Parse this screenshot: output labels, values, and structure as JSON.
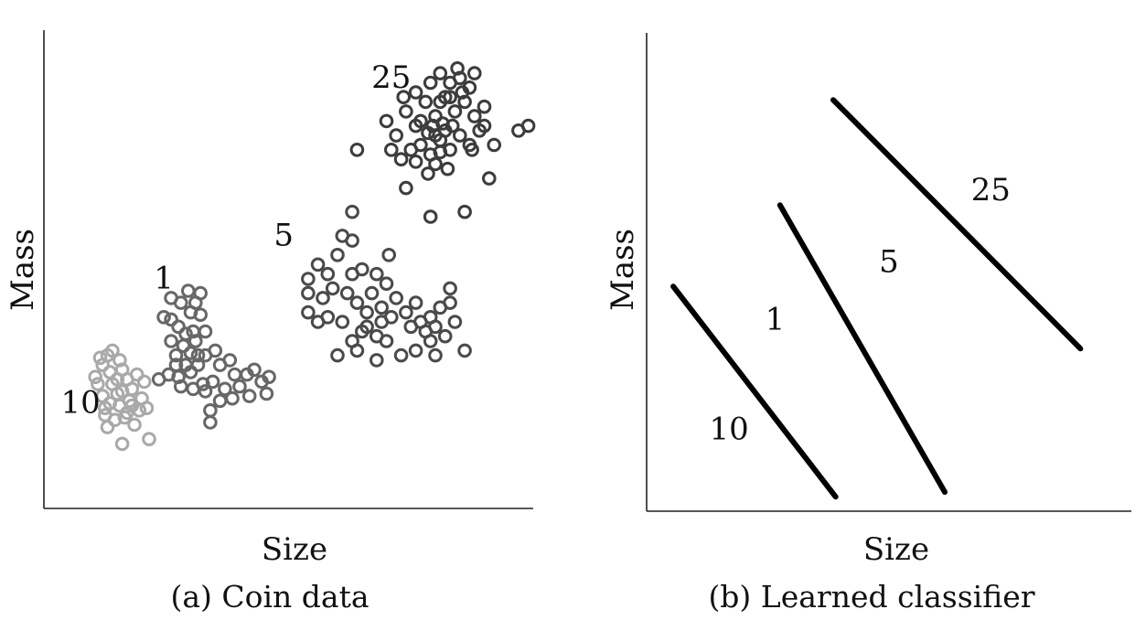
{
  "colors": {
    "coin_1": "#676767",
    "coin_5": "#4a4a4a",
    "coin_10": "#a9a9a9",
    "coin_25": "#3c3c3c",
    "boundary": "#000000"
  },
  "chart_data": [
    {
      "type": "scatter",
      "panel": "a",
      "caption": "(a) Coin data",
      "xlabel": "Size",
      "ylabel": "Mass",
      "xlim": [
        0,
        10
      ],
      "ylim": [
        0,
        10
      ],
      "grid": false,
      "cluster_labels": [
        {
          "text": "25",
          "x": 7.1,
          "y": 8.8
        },
        {
          "text": "5",
          "x": 4.9,
          "y": 5.5
        },
        {
          "text": "1",
          "x": 2.45,
          "y": 4.6
        },
        {
          "text": "10",
          "x": 0.75,
          "y": 2.0
        }
      ],
      "series": [
        {
          "name": "10",
          "color_key": "coin_10",
          "points": [
            [
              1.1,
              2.6
            ],
            [
              1.2,
              3.0
            ],
            [
              1.05,
              2.75
            ],
            [
              1.3,
              3.2
            ],
            [
              1.4,
              2.6
            ],
            [
              1.5,
              2.4
            ],
            [
              1.35,
              2.2
            ],
            [
              1.6,
              2.9
            ],
            [
              1.25,
              2.1
            ],
            [
              1.7,
              2.0
            ],
            [
              1.8,
              2.5
            ],
            [
              1.45,
              1.85
            ],
            [
              1.9,
              2.8
            ],
            [
              1.55,
              3.1
            ],
            [
              1.75,
              2.25
            ],
            [
              2.0,
              2.3
            ],
            [
              1.65,
              1.9
            ],
            [
              2.05,
              2.65
            ],
            [
              1.2,
              2.35
            ],
            [
              1.4,
              3.3
            ],
            [
              1.85,
              1.75
            ],
            [
              1.3,
              1.7
            ],
            [
              1.95,
              2.05
            ],
            [
              1.5,
              2.7
            ],
            [
              1.15,
              3.15
            ],
            [
              1.6,
              2.45
            ],
            [
              1.7,
              2.7
            ],
            [
              1.35,
              2.85
            ],
            [
              1.55,
              2.15
            ],
            [
              1.8,
              2.15
            ],
            [
              1.6,
              1.35
            ],
            [
              2.15,
              1.45
            ],
            [
              2.1,
              2.1
            ],
            [
              1.25,
              1.95
            ]
          ]
        },
        {
          "name": "1",
          "color_key": "coin_1",
          "points": [
            [
              2.6,
              4.4
            ],
            [
              2.8,
              4.3
            ],
            [
              3.1,
              4.3
            ],
            [
              3.2,
              4.5
            ],
            [
              3.0,
              4.1
            ],
            [
              2.75,
              3.8
            ],
            [
              3.05,
              3.7
            ],
            [
              3.3,
              3.7
            ],
            [
              2.85,
              3.4
            ],
            [
              3.1,
              3.5
            ],
            [
              3.3,
              3.2
            ],
            [
              3.5,
              3.3
            ],
            [
              3.6,
              3.0
            ],
            [
              3.8,
              3.1
            ],
            [
              3.9,
              2.8
            ],
            [
              4.0,
              2.55
            ],
            [
              4.15,
              2.8
            ],
            [
              4.3,
              2.9
            ],
            [
              4.45,
              2.65
            ],
            [
              4.6,
              2.75
            ],
            [
              4.55,
              2.4
            ],
            [
              4.2,
              2.35
            ],
            [
              3.7,
              2.5
            ],
            [
              3.85,
              2.3
            ],
            [
              3.4,
              2.05
            ],
            [
              3.6,
              2.25
            ],
            [
              3.3,
              2.45
            ],
            [
              3.05,
              2.5
            ],
            [
              2.8,
              2.55
            ],
            [
              2.55,
              2.8
            ],
            [
              2.35,
              2.7
            ],
            [
              2.7,
              3.2
            ],
            [
              2.9,
              3.0
            ],
            [
              2.6,
              3.5
            ],
            [
              3.0,
              2.85
            ],
            [
              3.15,
              3.0
            ],
            [
              3.45,
              2.65
            ],
            [
              2.45,
              4.0
            ],
            [
              2.6,
              3.95
            ],
            [
              2.7,
              3.0
            ],
            [
              3.0,
              3.25
            ],
            [
              3.15,
              3.2
            ],
            [
              2.9,
              3.65
            ],
            [
              3.2,
              4.05
            ],
            [
              2.95,
              4.55
            ],
            [
              2.75,
              2.75
            ],
            [
              3.4,
              1.8
            ],
            [
              3.25,
              2.6
            ]
          ]
        },
        {
          "name": "5",
          "color_key": "coin_5",
          "points": [
            [
              5.4,
              4.8
            ],
            [
              5.6,
              5.1
            ],
            [
              5.8,
              4.9
            ],
            [
              6.0,
              5.3
            ],
            [
              6.3,
              4.9
            ],
            [
              6.5,
              5.0
            ],
            [
              6.7,
              4.5
            ],
            [
              6.8,
              4.9
            ],
            [
              7.0,
              4.7
            ],
            [
              6.9,
              4.2
            ],
            [
              7.2,
              4.4
            ],
            [
              7.4,
              4.1
            ],
            [
              7.6,
              4.3
            ],
            [
              7.7,
              3.9
            ],
            [
              7.9,
              4.0
            ],
            [
              8.1,
              4.2
            ],
            [
              8.3,
              4.3
            ],
            [
              8.4,
              3.9
            ],
            [
              8.2,
              3.6
            ],
            [
              7.9,
              3.5
            ],
            [
              7.6,
              3.3
            ],
            [
              7.3,
              3.2
            ],
            [
              7.0,
              3.5
            ],
            [
              6.8,
              3.6
            ],
            [
              6.5,
              3.7
            ],
            [
              6.3,
              3.5
            ],
            [
              6.1,
              3.9
            ],
            [
              5.8,
              4.0
            ],
            [
              5.6,
              3.9
            ],
            [
              5.4,
              4.1
            ],
            [
              5.7,
              4.4
            ],
            [
              5.9,
              4.6
            ],
            [
              6.2,
              4.5
            ],
            [
              6.4,
              4.3
            ],
            [
              6.6,
              4.1
            ],
            [
              6.9,
              3.9
            ],
            [
              7.1,
              4.0
            ],
            [
              7.5,
              3.8
            ],
            [
              7.8,
              3.7
            ],
            [
              8.0,
              3.8
            ],
            [
              6.8,
              3.1
            ],
            [
              6.0,
              3.2
            ],
            [
              8.0,
              3.2
            ],
            [
              8.3,
              4.6
            ],
            [
              6.3,
              6.2
            ],
            [
              6.3,
              5.6
            ],
            [
              7.05,
              5.3
            ],
            [
              6.4,
              3.3
            ],
            [
              6.1,
              5.7
            ],
            [
              8.6,
              3.3
            ],
            [
              6.6,
              3.8
            ],
            [
              5.4,
              4.5
            ]
          ]
        },
        {
          "name": "25",
          "color_key": "coin_25",
          "points": [
            [
              7.0,
              8.1
            ],
            [
              7.2,
              7.8
            ],
            [
              7.4,
              8.3
            ],
            [
              7.6,
              8.0
            ],
            [
              7.8,
              8.5
            ],
            [
              8.0,
              8.2
            ],
            [
              8.2,
              8.6
            ],
            [
              8.4,
              8.3
            ],
            [
              8.6,
              8.5
            ],
            [
              8.8,
              8.2
            ],
            [
              9.0,
              8.4
            ],
            [
              8.9,
              7.9
            ],
            [
              8.7,
              7.6
            ],
            [
              8.5,
              7.8
            ],
            [
              8.3,
              7.5
            ],
            [
              8.1,
              7.7
            ],
            [
              7.9,
              7.4
            ],
            [
              7.7,
              7.6
            ],
            [
              7.5,
              7.5
            ],
            [
              7.3,
              7.3
            ],
            [
              7.1,
              7.5
            ],
            [
              7.6,
              8.7
            ],
            [
              7.9,
              8.9
            ],
            [
              8.1,
              9.1
            ],
            [
              8.3,
              8.9
            ],
            [
              8.5,
              9.0
            ],
            [
              8.7,
              8.8
            ],
            [
              8.45,
              9.2
            ],
            [
              8.15,
              8.05
            ],
            [
              7.95,
              8.0
            ],
            [
              7.85,
              7.0
            ],
            [
              8.25,
              7.1
            ],
            [
              9.2,
              7.6
            ],
            [
              9.7,
              7.9
            ],
            [
              9.9,
              8.0
            ],
            [
              6.4,
              7.5
            ],
            [
              7.4,
              6.7
            ],
            [
              8.6,
              6.2
            ],
            [
              7.9,
              6.1
            ],
            [
              9.1,
              6.9
            ],
            [
              8.0,
              7.8
            ],
            [
              8.2,
              7.9
            ],
            [
              8.35,
              8.0
            ],
            [
              8.0,
              7.2
            ],
            [
              8.1,
              7.45
            ],
            [
              7.7,
              8.1
            ],
            [
              7.6,
              7.25
            ],
            [
              8.55,
              8.7
            ],
            [
              8.8,
              9.1
            ],
            [
              9.0,
              8.0
            ],
            [
              8.75,
              7.5
            ],
            [
              7.35,
              8.6
            ],
            [
              8.1,
              8.5
            ],
            [
              8.3,
              8.6
            ],
            [
              7.85,
              7.85
            ]
          ]
        }
      ]
    },
    {
      "type": "line",
      "panel": "b",
      "caption": "(b) Learned classifier",
      "xlabel": "Size",
      "ylabel": "Mass",
      "xlim": [
        0,
        10
      ],
      "ylim": [
        0,
        10
      ],
      "grid": false,
      "region_labels": [
        {
          "text": "10",
          "x": 1.7,
          "y": 1.5
        },
        {
          "text": "1",
          "x": 2.65,
          "y": 3.8
        },
        {
          "text": "5",
          "x": 5.0,
          "y": 5.0
        },
        {
          "text": "25",
          "x": 7.1,
          "y": 6.5
        }
      ],
      "boundaries": [
        {
          "x1": 0.55,
          "y1": 4.7,
          "x2": 3.9,
          "y2": 0.3
        },
        {
          "x1": 2.75,
          "y1": 6.4,
          "x2": 6.15,
          "y2": 0.4
        },
        {
          "x1": 3.85,
          "y1": 8.6,
          "x2": 8.95,
          "y2": 3.4
        }
      ]
    }
  ]
}
